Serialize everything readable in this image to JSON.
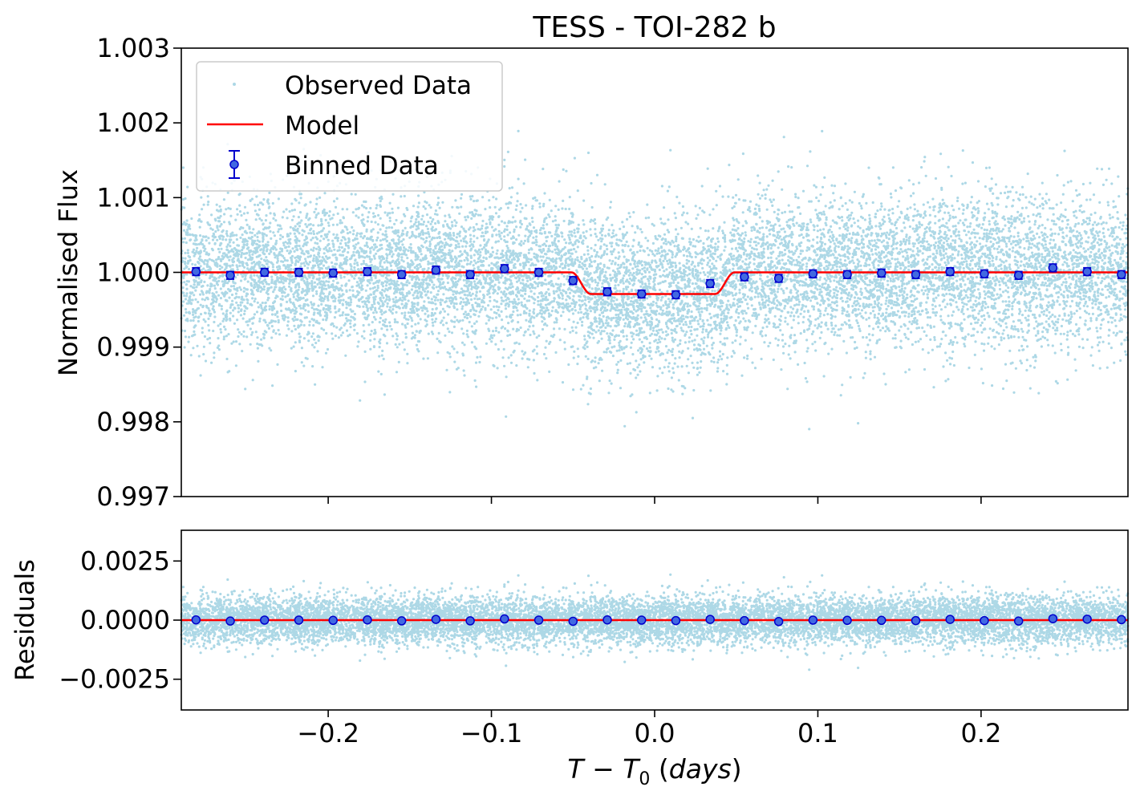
{
  "chart_data": [
    {
      "type": "scatter",
      "panel": "top",
      "title": "TESS - TOI-282 b",
      "xlabel": "",
      "ylabel": "Normalised Flux",
      "xlim": [
        -0.29,
        0.29
      ],
      "ylim": [
        0.997,
        1.003
      ],
      "yticks": [
        0.997,
        0.998,
        0.999,
        1.0,
        1.001,
        1.002,
        1.003
      ],
      "ytick_labels": [
        "0.997",
        "0.998",
        "0.999",
        "1.000",
        "1.001",
        "1.002",
        "1.003"
      ],
      "xticks": [
        -0.2,
        -0.1,
        0.0,
        0.1,
        0.2
      ],
      "grid": false,
      "legend": {
        "position": "top-left",
        "entries": [
          "Observed Data",
          "Model",
          "Binned Data"
        ]
      },
      "observed": {
        "name": "Observed Data",
        "color": "#add8e6",
        "noise_std": 0.0005,
        "count": 12000
      },
      "model": {
        "name": "Model",
        "color": "#ff0000",
        "baseline": 1.0,
        "depth": 0.00029,
        "ingress_start": -0.051,
        "ingress_end": -0.039,
        "egress_start": 0.037,
        "egress_end": 0.049
      },
      "binned": {
        "name": "Binned Data",
        "color": "#0000cd",
        "marker_fill": "#4169e1",
        "x": [
          -0.281,
          -0.26,
          -0.239,
          -0.218,
          -0.197,
          -0.176,
          -0.155,
          -0.134,
          -0.113,
          -0.092,
          -0.071,
          -0.05,
          -0.029,
          -0.008,
          0.013,
          0.034,
          0.055,
          0.076,
          0.097,
          0.118,
          0.139,
          0.16,
          0.181,
          0.202,
          0.223,
          0.244,
          0.265,
          0.286
        ],
        "y": [
          1.00001,
          0.99996,
          1.0,
          1.0,
          0.99999,
          1.00001,
          0.99997,
          1.00003,
          0.99997,
          1.00005,
          1.0,
          0.99989,
          0.99974,
          0.99971,
          0.9997,
          0.99985,
          0.99994,
          0.99992,
          0.99998,
          0.99997,
          0.99999,
          0.99997,
          1.00001,
          0.99998,
          0.99996,
          1.00006,
          1.00001,
          0.99997
        ],
        "yerr": 5e-05
      }
    },
    {
      "type": "scatter",
      "panel": "bottom",
      "xlabel": "T − T0 (days)",
      "ylabel": "Residuals",
      "xlim": [
        -0.29,
        0.29
      ],
      "ylim": [
        -0.0038,
        0.0038
      ],
      "yticks": [
        -0.0025,
        0.0,
        0.0025
      ],
      "ytick_labels": [
        "−0.0025",
        "0.0000",
        "0.0025"
      ],
      "xticks": [
        -0.2,
        -0.1,
        0.0,
        0.1,
        0.2
      ],
      "xtick_labels": [
        "−0.2",
        "−0.1",
        "0.0",
        "0.1",
        "0.2"
      ],
      "grid": false,
      "zero_line_color": "#ff0000",
      "residual_points_color": "#add8e6",
      "binned_residuals": [
        1e-05,
        -4e-05,
        0.0,
        0.0,
        -1e-05,
        1e-05,
        -3e-05,
        3e-05,
        -3e-05,
        5e-05,
        0.0,
        -5e-05,
        1e-05,
        0.0,
        -2e-05,
        3e-05,
        -2e-05,
        -6e-05,
        0.0,
        -1e-05,
        -1e-05,
        -2e-05,
        3e-05,
        -2e-05,
        -4e-05,
        6e-05,
        4e-05,
        2e-05
      ]
    }
  ]
}
